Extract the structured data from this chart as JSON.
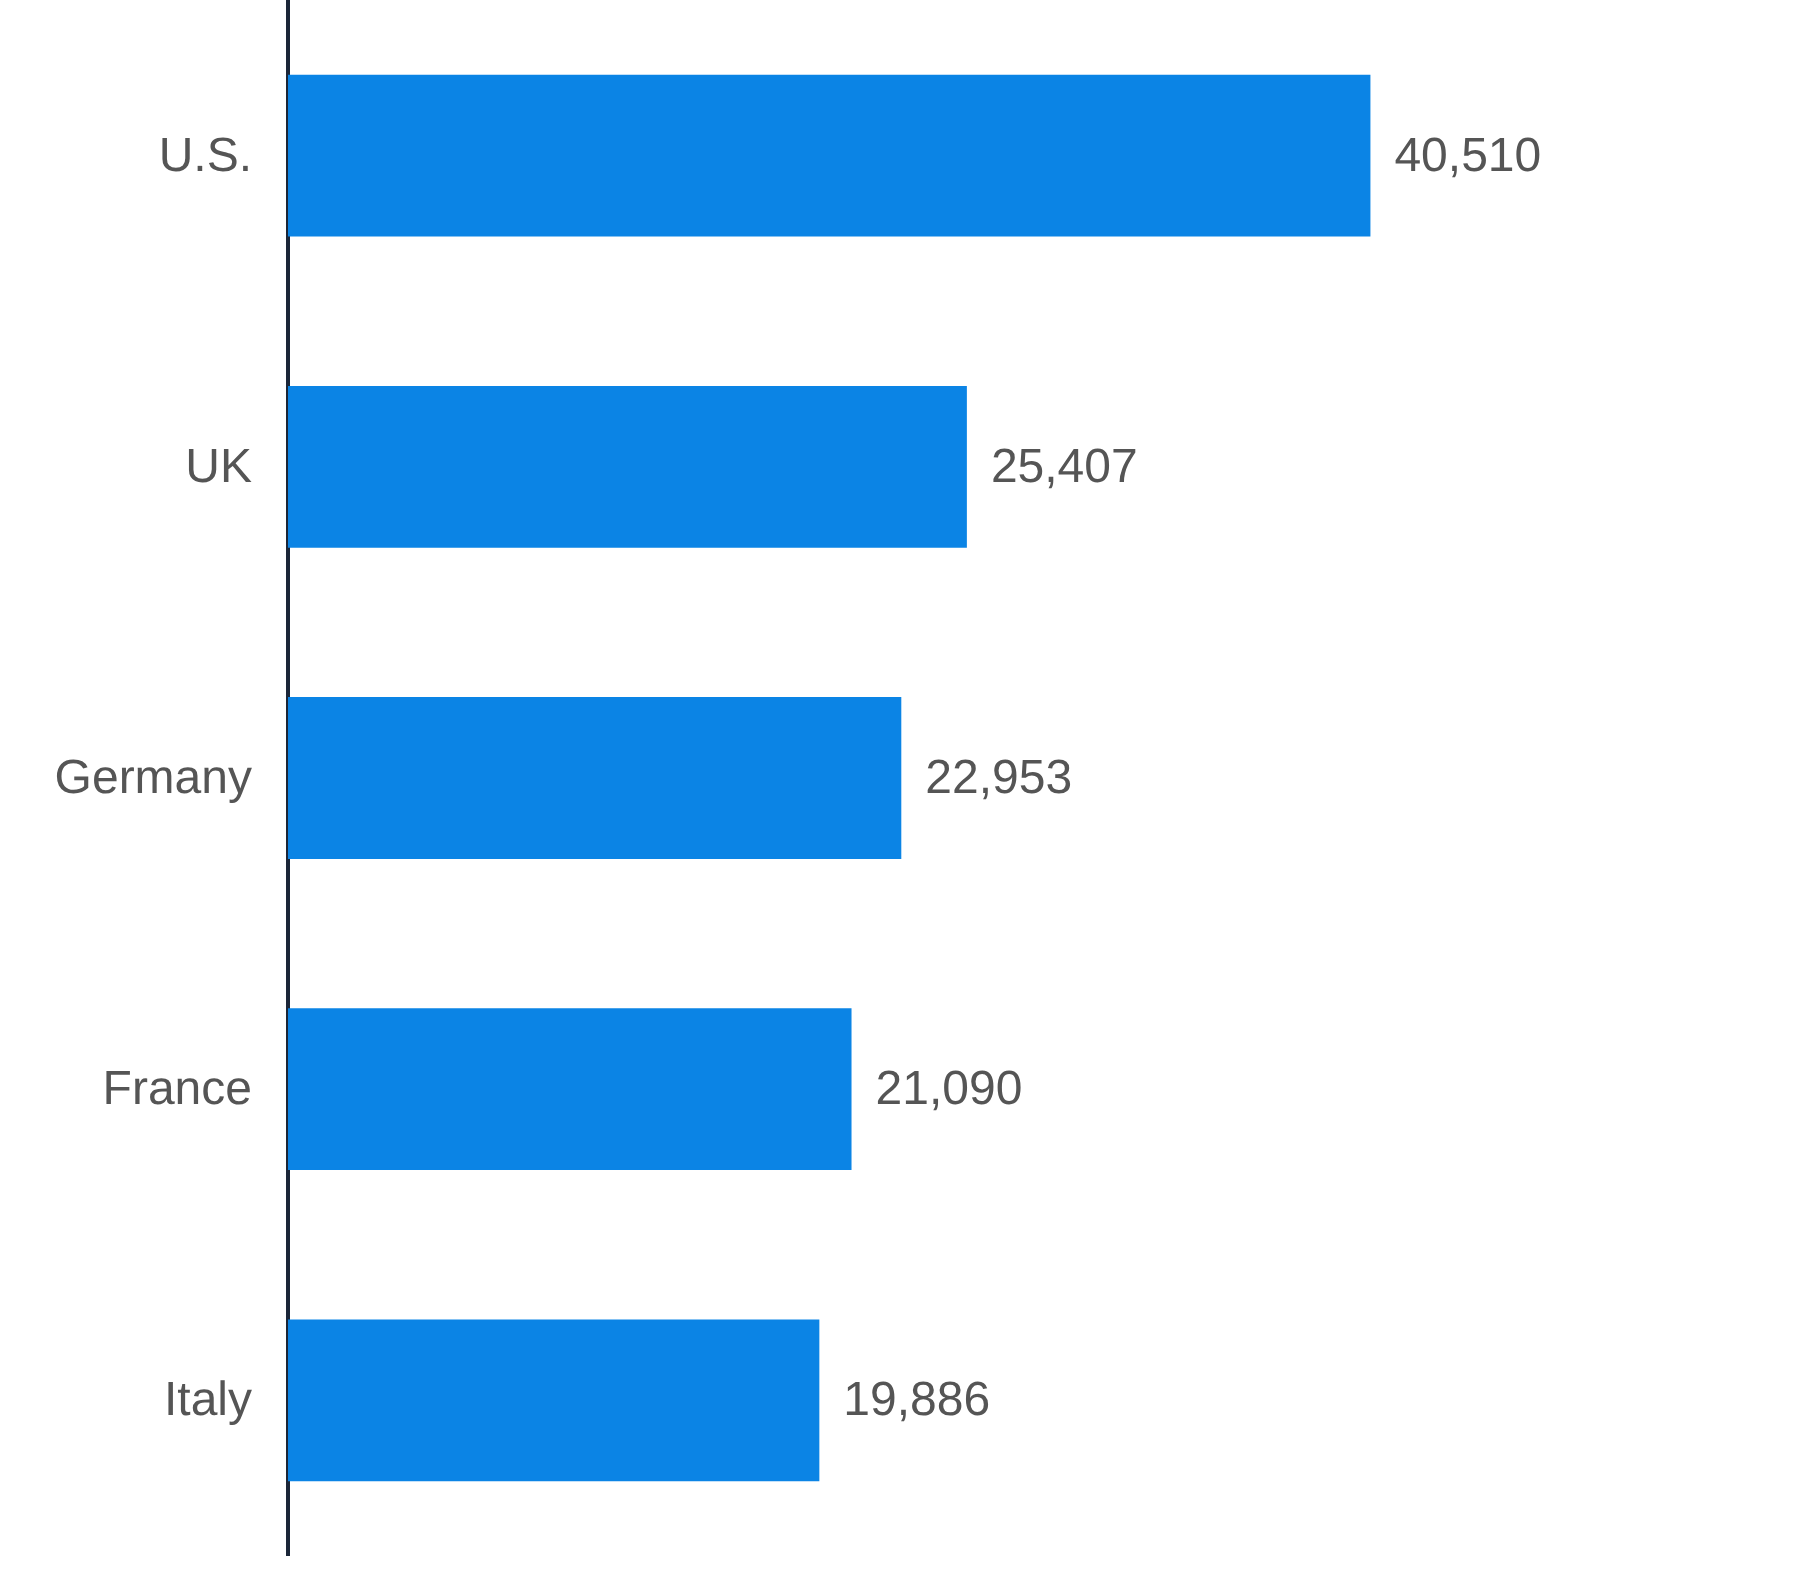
{
  "chart_data": {
    "type": "bar",
    "orientation": "horizontal",
    "categories": [
      "U.S.",
      "UK",
      "Germany",
      "France",
      "Italy"
    ],
    "values": [
      40510,
      25407,
      22953,
      21090,
      19886
    ],
    "value_labels": [
      "40,510",
      "25,407",
      "22,953",
      "21,090",
      "19,886"
    ],
    "color": "#0b84e5",
    "grid": false,
    "tick_labels": "y"
  }
}
